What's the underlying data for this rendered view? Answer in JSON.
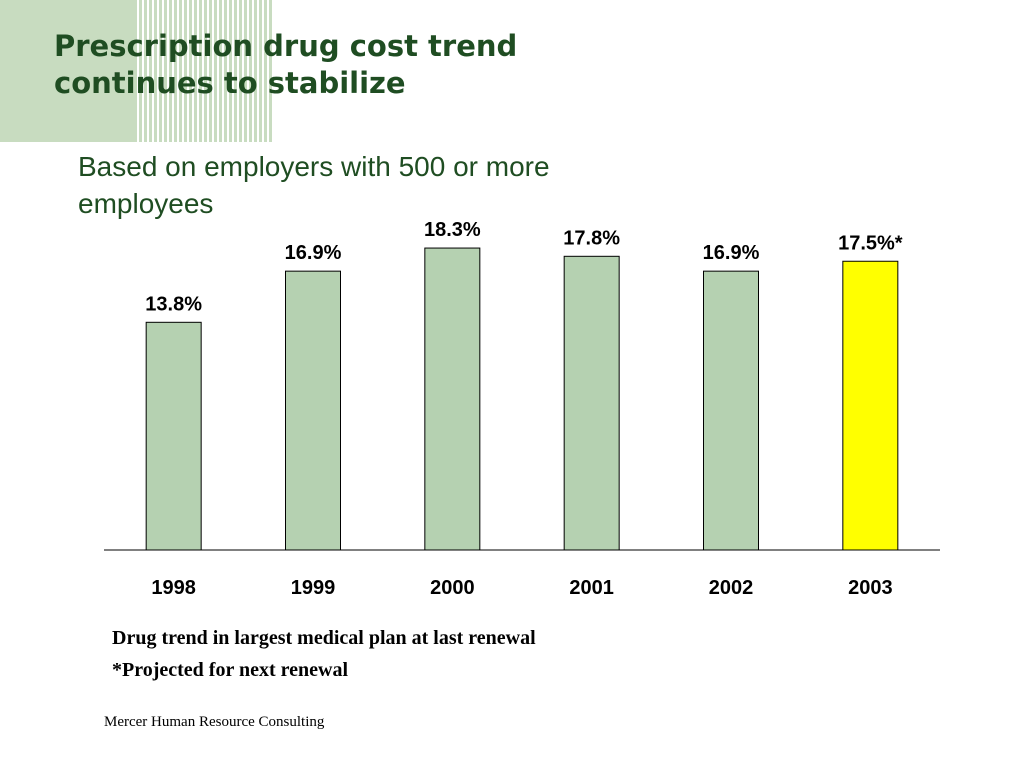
{
  "slide": {
    "title": "Prescription drug cost trend\ncontinues to stabilize",
    "subtitle": "Based on employers with 500 or more employees",
    "notes": [
      "Drug trend in largest medical plan at last renewal",
      "*Projected for next renewal"
    ],
    "footer": "Mercer Human Resource Consulting",
    "colors": {
      "title": "#1f4d22",
      "bar": "#b5d1b1",
      "highlight_bar": "#ffff00",
      "decoration": "#c8dcc0"
    }
  },
  "chart_data": {
    "type": "bar",
    "categories": [
      "1998",
      "1999",
      "2000",
      "2001",
      "2002",
      "2003"
    ],
    "values": [
      13.8,
      16.9,
      18.3,
      17.8,
      16.9,
      17.5
    ],
    "data_labels": [
      "13.8%",
      "16.9%",
      "18.3%",
      "17.8%",
      "16.9%",
      "17.5%*"
    ],
    "highlight_index": 5,
    "title": "",
    "xlabel": "",
    "ylabel": "",
    "ylim": [
      0,
      20
    ],
    "grid": false,
    "legend": "none"
  }
}
